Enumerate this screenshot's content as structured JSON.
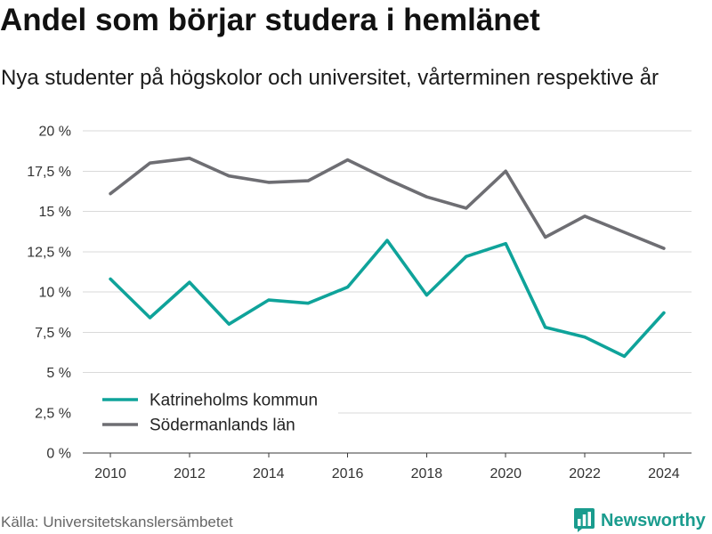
{
  "chart_data": {
    "type": "line",
    "title": "Andel som börjar studera i hemlänet",
    "subtitle": "Nya studenter på högskolor och universitet, vårterminen respektive år",
    "x": [
      2010,
      2011,
      2012,
      2013,
      2014,
      2015,
      2016,
      2017,
      2018,
      2019,
      2020,
      2021,
      2022,
      2023,
      2024
    ],
    "x_ticks": [
      2010,
      2012,
      2014,
      2016,
      2018,
      2020,
      2022,
      2024
    ],
    "xlim": [
      2009.3,
      2024.7
    ],
    "y_ticks": [
      0,
      2.5,
      5,
      7.5,
      10,
      12.5,
      15,
      17.5,
      20
    ],
    "y_tick_labels": [
      "0 %",
      "2,5 %",
      "5 %",
      "7,5 %",
      "10 %",
      "12,5 %",
      "15 %",
      "17,5 %",
      "20 %"
    ],
    "ylim": [
      0,
      20
    ],
    "grid": true,
    "legend_position": "bottom-left",
    "series": [
      {
        "name": "Katrineholms kommun",
        "color": "#0fa39a",
        "values": [
          10.8,
          8.4,
          10.6,
          8.0,
          9.5,
          9.3,
          10.3,
          13.2,
          9.8,
          12.2,
          13.0,
          7.8,
          7.2,
          6.0,
          8.7
        ]
      },
      {
        "name": "Södermanlands län",
        "color": "#6e6e73",
        "values": [
          16.1,
          18.0,
          18.3,
          17.2,
          16.8,
          16.9,
          18.2,
          17.0,
          15.9,
          15.2,
          17.5,
          13.4,
          14.7,
          13.7,
          12.7
        ]
      }
    ]
  },
  "source": "Källa: Universitetskanslersämbetet",
  "brand": {
    "name": "Newsworthy",
    "icon": "bar-chart-bubble-icon",
    "color": "#1a9c8e"
  }
}
